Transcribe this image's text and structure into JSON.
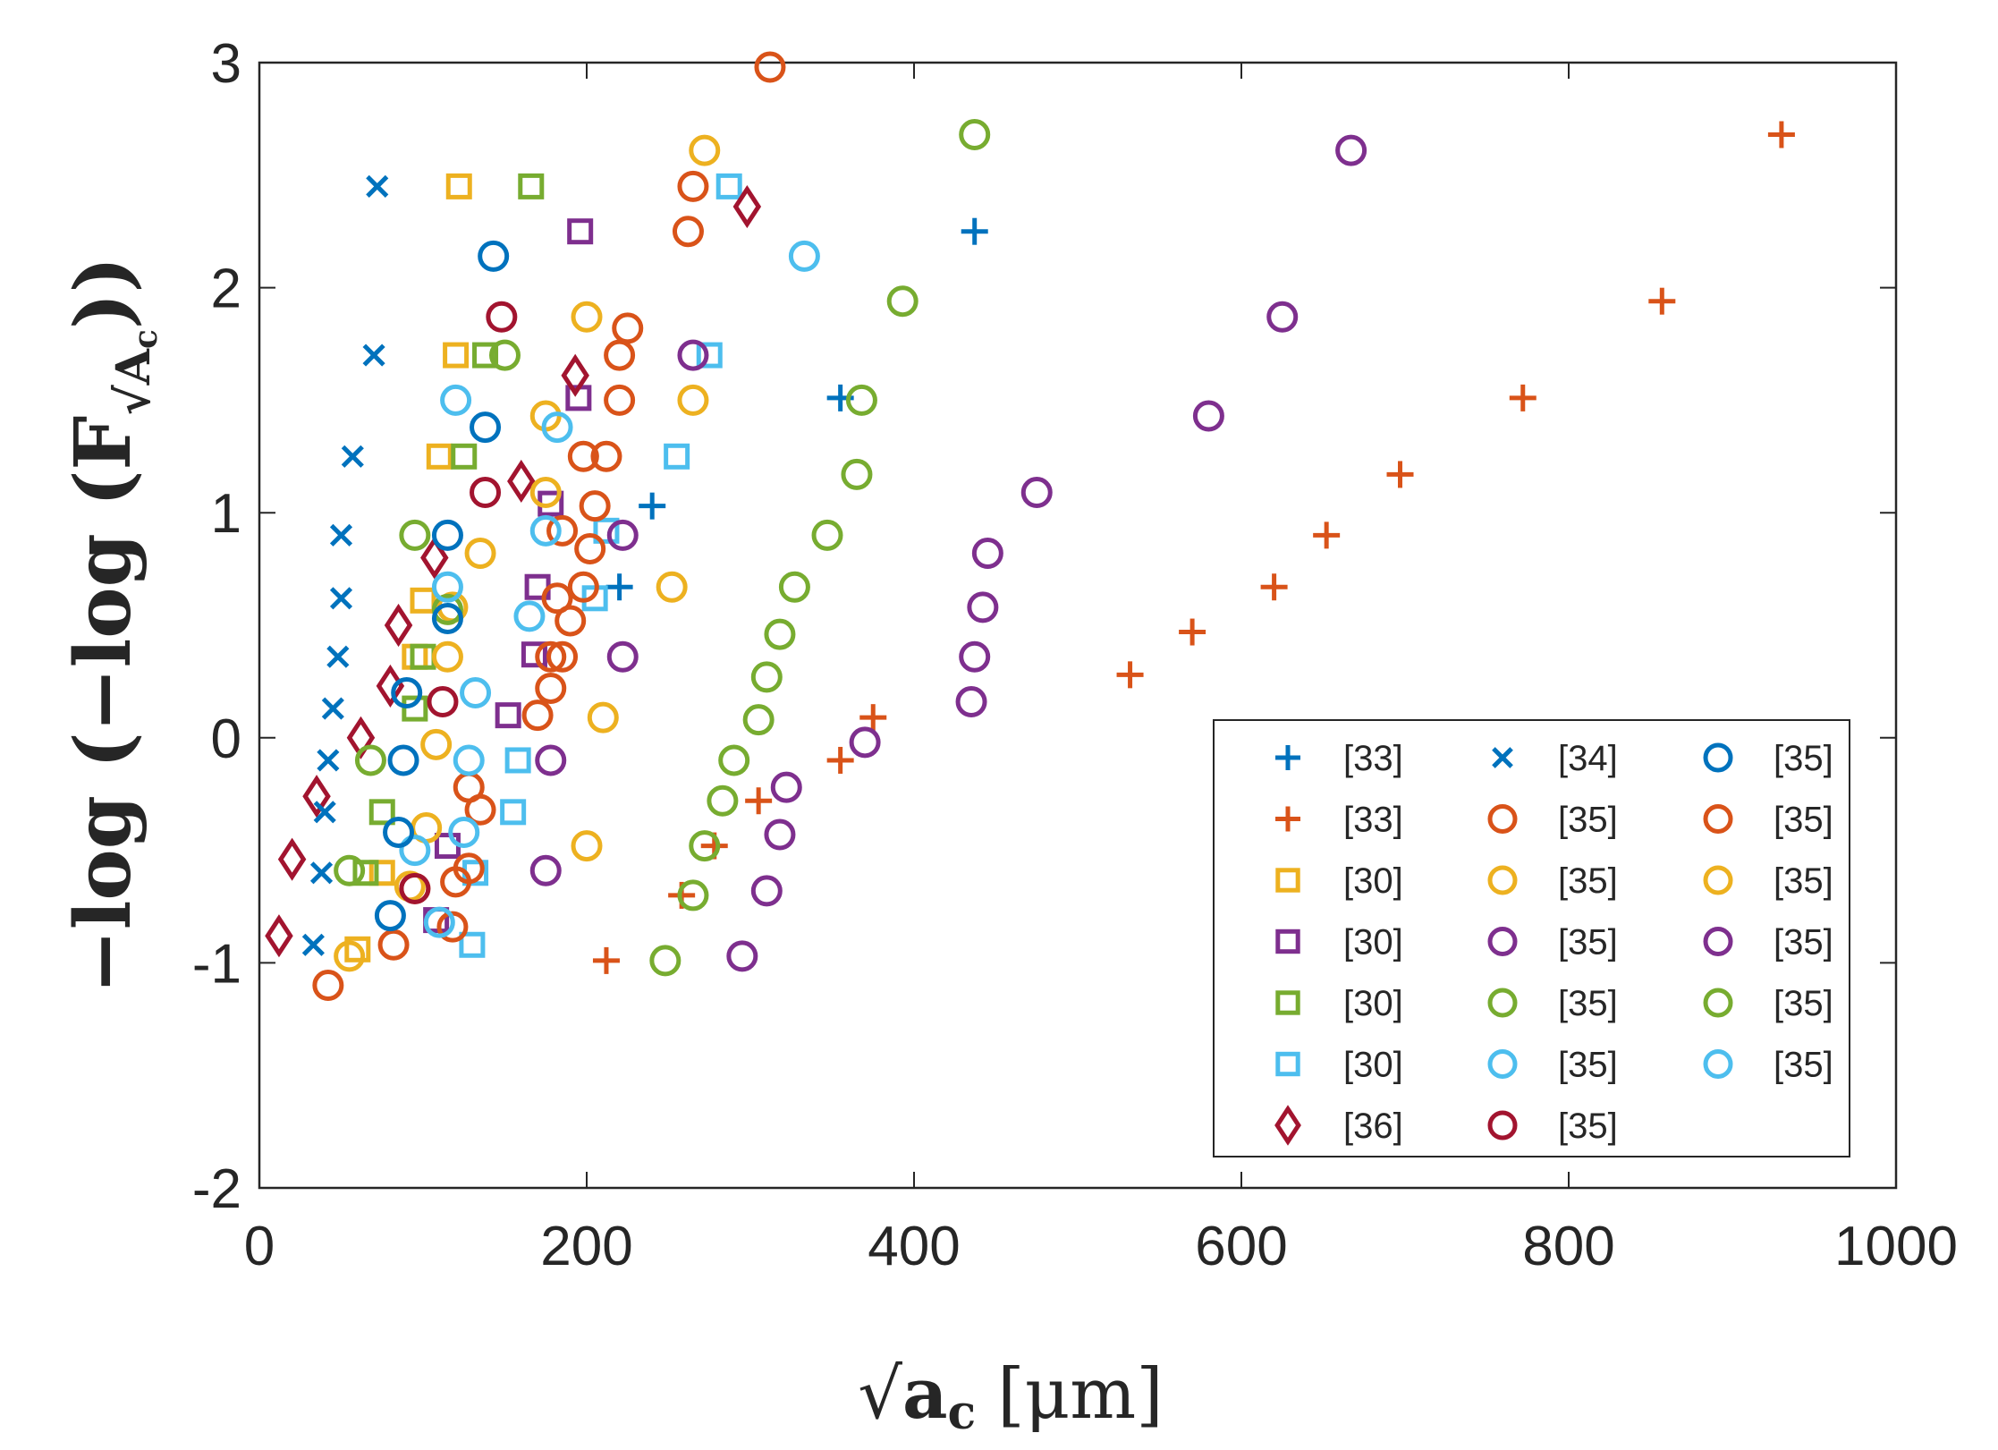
{
  "chart_data": {
    "type": "scatter",
    "xlabel": {
      "prefix": "√",
      "main": "a",
      "sub": "c",
      "unit": "[μm]"
    },
    "ylabel": {
      "text": "−log (−log (F",
      "sub": "√A",
      "subsub": "c",
      "close": "))"
    },
    "xlim": [
      0,
      1000
    ],
    "ylim": [
      -2,
      3
    ],
    "xticks": [
      "0",
      "200",
      "400",
      "600",
      "800",
      "1000"
    ],
    "xtick_values": [
      0,
      200,
      400,
      600,
      800,
      1000
    ],
    "yticks": [
      "3",
      "2",
      "1",
      "0",
      "-1",
      "-2"
    ],
    "ytick_values": [
      3,
      2,
      1,
      0,
      -1,
      -2
    ],
    "legend_position": "bottom-right",
    "legend_columns": 3,
    "colors": {
      "blue": "#0072BD",
      "orange": "#D95319",
      "yellow": "#EDB120",
      "purple": "#7E2F8E",
      "green": "#77AC30",
      "cyan": "#4DBEEE",
      "darkred": "#A2142F"
    },
    "series": [
      {
        "label": "[33]",
        "marker": "plus",
        "color": "#0072BD",
        "points": [
          [
            220,
            0.67
          ],
          [
            240,
            1.03
          ],
          [
            355,
            1.51
          ],
          [
            437,
            2.25
          ]
        ]
      },
      {
        "label": "[33]",
        "marker": "plus",
        "color": "#D95319",
        "points": [
          [
            212,
            -0.99
          ],
          [
            258,
            -0.7
          ],
          [
            278,
            -0.48
          ],
          [
            305,
            -0.28
          ],
          [
            355,
            -0.1
          ],
          [
            375,
            0.09
          ],
          [
            532,
            0.28
          ],
          [
            570,
            0.47
          ],
          [
            620,
            0.67
          ],
          [
            652,
            0.9
          ],
          [
            697,
            1.17
          ],
          [
            772,
            1.51
          ],
          [
            857,
            1.94
          ],
          [
            930,
            2.68
          ]
        ]
      },
      {
        "label": "[30]",
        "marker": "square",
        "color": "#EDB120",
        "points": [
          [
            60,
            -0.94
          ],
          [
            75,
            -0.6
          ],
          [
            95,
            0.36
          ],
          [
            100,
            0.61
          ],
          [
            110,
            1.25
          ],
          [
            120,
            1.7
          ],
          [
            122,
            2.45
          ]
        ]
      },
      {
        "label": "[30]",
        "marker": "square",
        "color": "#7E2F8E",
        "points": [
          [
            108,
            -0.81
          ],
          [
            115,
            -0.48
          ],
          [
            152,
            0.1
          ],
          [
            168,
            0.37
          ],
          [
            170,
            0.67
          ],
          [
            178,
            1.04
          ],
          [
            195,
            1.51
          ],
          [
            196,
            2.25
          ]
        ]
      },
      {
        "label": "[30]",
        "marker": "square",
        "color": "#77AC30",
        "points": [
          [
            65,
            -0.6
          ],
          [
            75,
            -0.33
          ],
          [
            95,
            0.13
          ],
          [
            100,
            0.36
          ],
          [
            125,
            1.25
          ],
          [
            138,
            1.7
          ],
          [
            166,
            2.45
          ]
        ]
      },
      {
        "label": "[30]",
        "marker": "square",
        "color": "#4DBEEE",
        "points": [
          [
            130,
            -0.92
          ],
          [
            132,
            -0.6
          ],
          [
            155,
            -0.33
          ],
          [
            158,
            -0.1
          ],
          [
            205,
            0.62
          ],
          [
            212,
            0.92
          ],
          [
            255,
            1.25
          ],
          [
            275,
            1.7
          ],
          [
            287,
            2.45
          ]
        ]
      },
      {
        "label": "[36]",
        "marker": "diamond",
        "color": "#A2142F",
        "points": [
          [
            12,
            -0.88
          ],
          [
            20,
            -0.54
          ],
          [
            35,
            -0.26
          ],
          [
            62,
            0.0
          ],
          [
            80,
            0.23
          ],
          [
            85,
            0.5
          ],
          [
            107,
            0.8
          ],
          [
            160,
            1.14
          ],
          [
            193,
            1.61
          ],
          [
            298,
            2.36
          ]
        ]
      },
      {
        "label": "[34]",
        "marker": "x",
        "color": "#0072BD",
        "points": [
          [
            33,
            -0.92
          ],
          [
            38,
            -0.6
          ],
          [
            40,
            -0.33
          ],
          [
            42,
            -0.1
          ],
          [
            45,
            0.13
          ],
          [
            48,
            0.36
          ],
          [
            50,
            0.62
          ],
          [
            50,
            0.9
          ],
          [
            57,
            1.25
          ],
          [
            70,
            1.7
          ],
          [
            72,
            2.45
          ]
        ]
      },
      {
        "label": "[35]",
        "marker": "circle",
        "color": "#D95319",
        "points": [
          [
            42,
            -1.1
          ],
          [
            82,
            -0.92
          ],
          [
            95,
            -0.67
          ],
          [
            118,
            -0.84
          ],
          [
            120,
            -0.64
          ],
          [
            128,
            -0.58
          ],
          [
            135,
            -0.32
          ],
          [
            128,
            -0.22
          ],
          [
            170,
            0.1
          ],
          [
            178,
            0.22
          ],
          [
            185,
            0.36
          ],
          [
            190,
            0.52
          ],
          [
            198,
            0.67
          ],
          [
            178,
            0.36
          ],
          [
            182,
            0.62
          ],
          [
            185,
            0.92
          ],
          [
            202,
            0.84
          ],
          [
            205,
            1.03
          ],
          [
            198,
            1.25
          ],
          [
            212,
            1.25
          ],
          [
            220,
            1.5
          ],
          [
            220,
            1.7
          ],
          [
            225,
            1.82
          ],
          [
            262,
            2.25
          ],
          [
            265,
            2.45
          ],
          [
            312,
            2.98
          ]
        ]
      },
      {
        "label": "[35]",
        "marker": "circle",
        "color": "#EDB120",
        "points": [
          [
            55,
            -0.97
          ],
          [
            92,
            -0.66
          ],
          [
            102,
            -0.4
          ],
          [
            108,
            -0.03
          ],
          [
            115,
            0.36
          ],
          [
            118,
            0.58
          ],
          [
            135,
            0.82
          ],
          [
            175,
            1.09
          ],
          [
            175,
            1.43
          ],
          [
            200,
            1.87
          ],
          [
            210,
            0.09
          ],
          [
            200,
            -0.48
          ],
          [
            252,
            0.67
          ],
          [
            265,
            1.5
          ],
          [
            272,
            2.61
          ]
        ]
      },
      {
        "label": "[35]",
        "marker": "circle",
        "color": "#7E2F8E",
        "points": [
          [
            175,
            -0.59
          ],
          [
            178,
            -0.1
          ],
          [
            222,
            0.36
          ],
          [
            222,
            0.9
          ],
          [
            265,
            1.7
          ],
          [
            295,
            -0.97
          ],
          [
            310,
            -0.68
          ],
          [
            318,
            -0.43
          ],
          [
            322,
            -0.22
          ],
          [
            370,
            -0.02
          ],
          [
            435,
            0.16
          ],
          [
            437,
            0.36
          ],
          [
            442,
            0.58
          ],
          [
            445,
            0.82
          ],
          [
            475,
            1.09
          ],
          [
            580,
            1.43
          ],
          [
            625,
            1.87
          ],
          [
            667,
            2.61
          ]
        ]
      },
      {
        "label": "[35]",
        "marker": "circle",
        "color": "#77AC30",
        "points": [
          [
            55,
            -0.59
          ],
          [
            68,
            -0.1
          ],
          [
            95,
            0.9
          ],
          [
            115,
            0.57
          ],
          [
            150,
            1.7
          ],
          [
            248,
            -0.99
          ],
          [
            265,
            -0.7
          ],
          [
            272,
            -0.48
          ],
          [
            283,
            -0.28
          ],
          [
            290,
            -0.1
          ],
          [
            305,
            0.08
          ],
          [
            310,
            0.27
          ],
          [
            318,
            0.46
          ],
          [
            327,
            0.67
          ],
          [
            347,
            0.9
          ],
          [
            365,
            1.17
          ],
          [
            368,
            1.5
          ],
          [
            393,
            1.94
          ],
          [
            437,
            2.68
          ]
        ]
      },
      {
        "label": "[35]",
        "marker": "circle",
        "color": "#4DBEEE",
        "points": [
          [
            95,
            -0.5
          ],
          [
            110,
            -0.82
          ],
          [
            125,
            -0.42
          ],
          [
            115,
            0.67
          ],
          [
            120,
            1.5
          ],
          [
            128,
            -0.1
          ],
          [
            132,
            0.2
          ],
          [
            165,
            0.54
          ],
          [
            175,
            0.92
          ],
          [
            182,
            1.38
          ],
          [
            333,
            2.14
          ]
        ]
      },
      {
        "label": "[35]",
        "marker": "circle",
        "color": "#0072BD",
        "points": [
          [
            80,
            -0.79
          ],
          [
            85,
            -0.42
          ],
          [
            88,
            -0.1
          ],
          [
            90,
            0.2
          ],
          [
            115,
            0.53
          ],
          [
            115,
            0.9
          ],
          [
            138,
            1.38
          ],
          [
            143,
            2.14
          ]
        ]
      },
      {
        "label": "[35]",
        "marker": "circle",
        "color": "#A2142F",
        "points": [
          [
            95,
            -0.67
          ],
          [
            112,
            0.16
          ],
          [
            138,
            1.09
          ],
          [
            148,
            1.87
          ]
        ]
      }
    ]
  },
  "legend": [
    {
      "label": "[33]",
      "marker": "plus",
      "color": "#0072BD"
    },
    {
      "label": "[34]",
      "marker": "x",
      "color": "#0072BD"
    },
    {
      "label": "[35]",
      "marker": "circle",
      "color": "#0072BD"
    },
    {
      "label": "[33]",
      "marker": "plus",
      "color": "#D95319"
    },
    {
      "label": "[35]",
      "marker": "circle",
      "color": "#D95319"
    },
    {
      "label": "[35]",
      "marker": "circle",
      "color": "#D95319"
    },
    {
      "label": "[30]",
      "marker": "square",
      "color": "#EDB120"
    },
    {
      "label": "[35]",
      "marker": "circle",
      "color": "#EDB120"
    },
    {
      "label": "[35]",
      "marker": "circle",
      "color": "#EDB120"
    },
    {
      "label": "[30]",
      "marker": "square",
      "color": "#7E2F8E"
    },
    {
      "label": "[35]",
      "marker": "circle",
      "color": "#7E2F8E"
    },
    {
      "label": "[35]",
      "marker": "circle",
      "color": "#7E2F8E"
    },
    {
      "label": "[30]",
      "marker": "square",
      "color": "#77AC30"
    },
    {
      "label": "[35]",
      "marker": "circle",
      "color": "#77AC30"
    },
    {
      "label": "[35]",
      "marker": "circle",
      "color": "#77AC30"
    },
    {
      "label": "[30]",
      "marker": "square",
      "color": "#4DBEEE"
    },
    {
      "label": "[35]",
      "marker": "circle",
      "color": "#4DBEEE"
    },
    {
      "label": "[35]",
      "marker": "circle",
      "color": "#4DBEEE"
    },
    {
      "label": "[36]",
      "marker": "diamond",
      "color": "#A2142F"
    },
    {
      "label": "[35]",
      "marker": "circle",
      "color": "#A2142F"
    }
  ]
}
